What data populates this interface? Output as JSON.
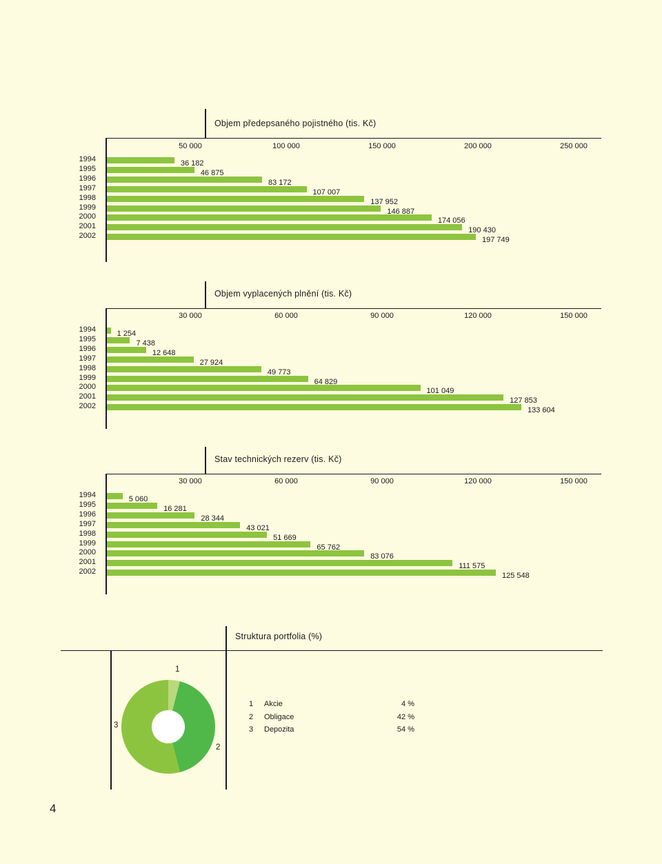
{
  "chart_data": [
    {
      "type": "bar",
      "title": "Objem předepsaného pojistného (tis. Kč)",
      "categories": [
        "1994",
        "1995",
        "1996",
        "1997",
        "1998",
        "1999",
        "2000",
        "2001",
        "2002"
      ],
      "values": [
        36182,
        46875,
        83172,
        107007,
        137952,
        146887,
        174056,
        190430,
        197749
      ],
      "value_labels": [
        "36 182",
        "46 875",
        "83 172",
        "107 007",
        "137 952",
        "146 887",
        "174 056",
        "190 430",
        "197 749"
      ],
      "ticks": [
        50000,
        100000,
        150000,
        200000,
        250000
      ],
      "tick_labels": [
        "50 000",
        "100 000",
        "150 000",
        "200 000",
        "250 000"
      ],
      "xlim": [
        0,
        250000
      ],
      "orientation": "horizontal",
      "color": "#8dc43f"
    },
    {
      "type": "bar",
      "title": "Objem vyplacených plnění (tis. Kč)",
      "categories": [
        "1994",
        "1995",
        "1996",
        "1997",
        "1998",
        "1999",
        "2000",
        "2001",
        "2002"
      ],
      "values": [
        1254,
        7438,
        12648,
        27924,
        49773,
        64829,
        101049,
        127853,
        133604
      ],
      "value_labels": [
        "1 254",
        "7 438",
        "12 648",
        "27 924",
        "49 773",
        "64 829",
        "101 049",
        "127 853",
        "133 604"
      ],
      "ticks": [
        30000,
        60000,
        90000,
        120000,
        150000
      ],
      "tick_labels": [
        "30 000",
        "60 000",
        "90 000",
        "120 000",
        "150 000"
      ],
      "xlim": [
        0,
        150000
      ],
      "orientation": "horizontal",
      "color": "#8dc43f"
    },
    {
      "type": "bar",
      "title": "Stav technických rezerv (tis. Kč)",
      "categories": [
        "1994",
        "1995",
        "1996",
        "1997",
        "1998",
        "1999",
        "2000",
        "2001",
        "2002"
      ],
      "values": [
        5060,
        16281,
        28344,
        43021,
        51669,
        65762,
        83076,
        111575,
        125548
      ],
      "value_labels": [
        "5 060",
        "16 281",
        "28 344",
        "43 021",
        "51 669",
        "65 762",
        "83 076",
        "111 575",
        "125 548"
      ],
      "ticks": [
        30000,
        60000,
        90000,
        120000,
        150000
      ],
      "tick_labels": [
        "30 000",
        "60 000",
        "90 000",
        "120 000",
        "150 000"
      ],
      "xlim": [
        0,
        150000
      ],
      "orientation": "horizontal",
      "color": "#8dc43f"
    },
    {
      "type": "pie",
      "title": "Struktura portfolia (%)",
      "labels": [
        "Akcie",
        "Obligace",
        "Depozita"
      ],
      "numbers": [
        "1",
        "2",
        "3"
      ],
      "values": [
        4,
        42,
        54
      ],
      "value_labels": [
        "4 %",
        "42 %",
        "54 %"
      ],
      "colors": [
        "#b9d97a",
        "#4fb848",
        "#8dc43f"
      ],
      "donut": true
    }
  ],
  "page_number": "4"
}
